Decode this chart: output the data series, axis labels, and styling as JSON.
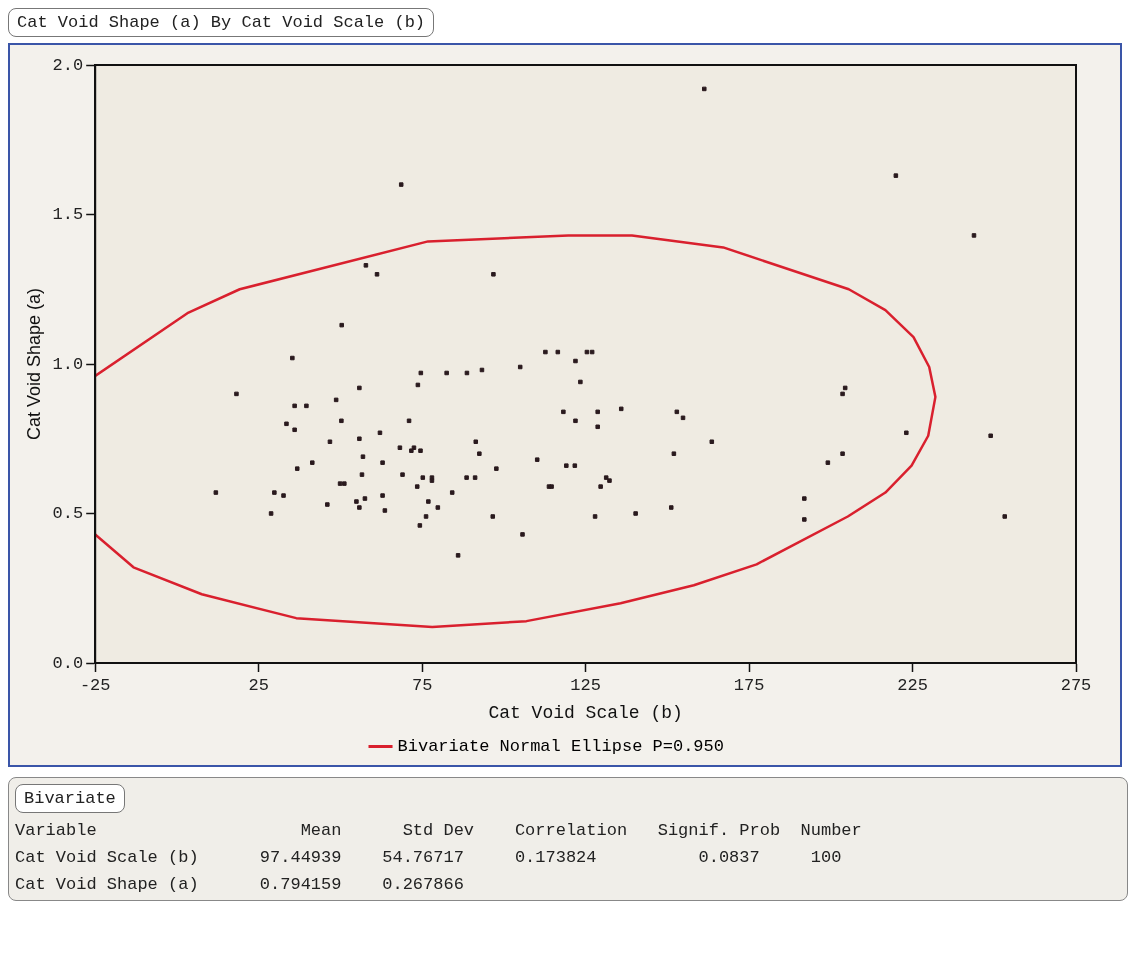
{
  "chart_data": {
    "type": "scatter",
    "title": "Cat Void Shape (a)  By Cat Void Scale (b)",
    "xlabel": "Cat Void Scale (b)",
    "ylabel": "Cat Void Shape (a)",
    "xlim": [
      -25,
      275
    ],
    "xticks": [
      -25,
      25,
      75,
      125,
      175,
      225,
      275
    ],
    "ylim": [
      0,
      2
    ],
    "yticks": [
      {
        "value": 0,
        "label": "0.0"
      },
      {
        "value": 0.5,
        "label": "0.5"
      },
      {
        "value": 1,
        "label": "1.0"
      },
      {
        "value": 1.5,
        "label": "1.5"
      },
      {
        "value": 2,
        "label": "2.0"
      }
    ],
    "grid": false,
    "legend": "bottom",
    "series": [
      {
        "type": "scatter",
        "color": "#2a1a1e",
        "marker": "square",
        "x": [
          50.4,
          35.3,
          18.2,
          74.6,
          73.7,
          55.8,
          48.7,
          36.0,
          39.6,
          50.3,
          71.0,
          33.5,
          36.0,
          62.1,
          46.8,
          55.8,
          68.2,
          72.5,
          71.7,
          74.5,
          56.9,
          62.9,
          36.8,
          41.4,
          56.6,
          69.0,
          75.2,
          49.9,
          51.2,
          73.5,
          11.9,
          29.8,
          32.6,
          46.0,
          54.9,
          55.8,
          57.5,
          62.9,
          63.6,
          28.8,
          74.3,
          76.2,
          76.9,
          78.0,
          78.0,
          79.8,
          82.5,
          88.7,
          93.3,
          105.0,
          112.7,
          116.5,
          125.4,
          127.0,
          121.9,
          123.4,
          118.2,
          121.9,
          128.7,
          128.7,
          135.9,
          152.9,
          154.8,
          163.6,
          152.0,
          91.4,
          92.5,
          97.7,
          110.2,
          119.1,
          121.7,
          131.3,
          132.3,
          129.6,
          113.8,
          114.6,
          88.6,
          91.2,
          84.2,
          96.6,
          105.7,
          127.9,
          140.3,
          151.2,
          86.0,
          219.9,
          243.8,
          204.4,
          203.6,
          223.1,
          248.9,
          203.6,
          199.1,
          191.9,
          191.9,
          253.2,
          161.3,
          68.6,
          57.8,
          61.2,
          96.8
        ],
        "values": [
          1.13,
          1.02,
          0.9,
          0.97,
          0.93,
          0.92,
          0.88,
          0.86,
          0.86,
          0.81,
          0.81,
          0.8,
          0.78,
          0.77,
          0.74,
          0.75,
          0.72,
          0.72,
          0.71,
          0.71,
          0.69,
          0.67,
          0.65,
          0.67,
          0.63,
          0.63,
          0.62,
          0.6,
          0.6,
          0.59,
          0.57,
          0.57,
          0.56,
          0.53,
          0.54,
          0.52,
          0.55,
          0.56,
          0.51,
          0.5,
          0.46,
          0.49,
          0.54,
          0.62,
          0.61,
          0.52,
          0.97,
          0.97,
          0.98,
          0.99,
          1.04,
          1.04,
          1.04,
          1.04,
          1.01,
          0.94,
          0.84,
          0.81,
          0.84,
          0.79,
          0.85,
          0.84,
          0.82,
          0.74,
          0.7,
          0.74,
          0.7,
          0.65,
          0.68,
          0.66,
          0.66,
          0.62,
          0.61,
          0.59,
          0.59,
          0.59,
          0.62,
          0.62,
          0.57,
          0.49,
          0.43,
          0.49,
          0.5,
          0.52,
          0.36,
          1.63,
          1.43,
          0.92,
          0.9,
          0.77,
          0.76,
          0.7,
          0.67,
          0.55,
          0.48,
          0.49,
          1.92,
          1.6,
          1.33,
          1.3,
          1.3
        ]
      },
      {
        "type": "line",
        "name": "Bivariate Normal Ellipse P=0.950",
        "color": "#d9202e",
        "marker": "none",
        "x": [
          -25,
          -13.3,
          7.6,
          36.5,
          78.1,
          106.9,
          135.7,
          158.1,
          177.3,
          205.2,
          216.7,
          224.7,
          229.8,
          232,
          230.1,
          225.3,
          216.7,
          205.5,
          167.1,
          139.2,
          119.7,
          76.8,
          19.2,
          3.2,
          -25
        ],
        "values": [
          0.43,
          0.32,
          0.23,
          0.15,
          0.12,
          0.14,
          0.2,
          0.26,
          0.33,
          0.49,
          0.57,
          0.66,
          0.76,
          0.89,
          0.99,
          1.09,
          1.18,
          1.25,
          1.39,
          1.43,
          1.43,
          1.41,
          1.25,
          1.17,
          0.96
        ]
      }
    ],
    "annotations": [
      "Bivariate",
      "Variable                    Mean      Std Dev    Correlation   Signif. Prob  Number",
      "Cat Void Scale (b)      97.44939    54.76717     0.173824          0.0837     100",
      "Cat Void Shape (a)      0.794159    0.267866"
    ]
  }
}
